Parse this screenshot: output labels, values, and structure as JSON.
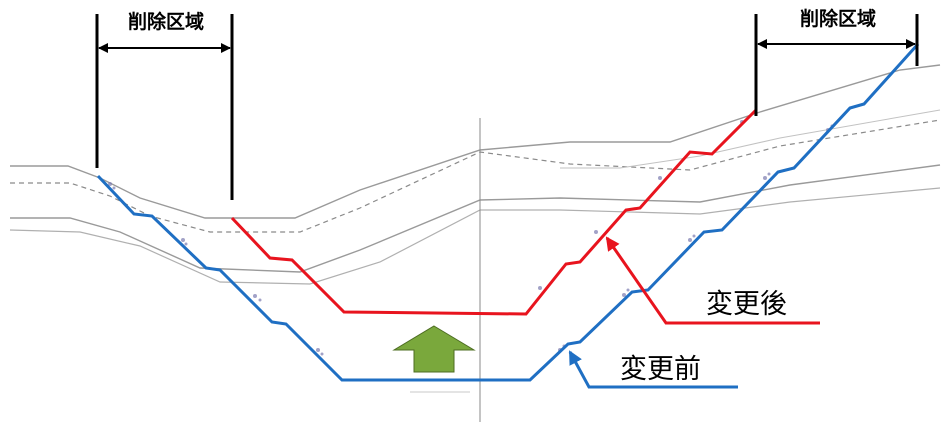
{
  "deletion_zone_label": "削除区域",
  "legend": {
    "after": {
      "label": "変更後",
      "color": "#e8141e"
    },
    "before": {
      "label": "変更前",
      "color": "#1f6fc3"
    }
  },
  "arrow_color": "#7aa83c"
}
